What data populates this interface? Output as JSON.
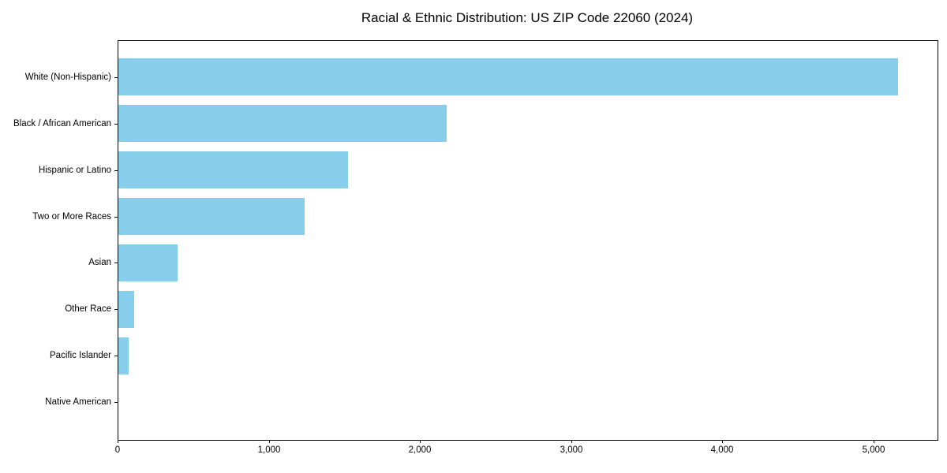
{
  "chart_data": {
    "type": "bar",
    "orientation": "horizontal",
    "title": "Racial & Ethnic Distribution: US ZIP Code 22060 (2024)",
    "categories": [
      "White (Non-Hispanic)",
      "Black / African American",
      "Hispanic or Latino",
      "Two or More Races",
      "Asian",
      "Other Race",
      "Pacific Islander",
      "Native American"
    ],
    "values": [
      5160,
      2170,
      1520,
      1230,
      390,
      105,
      70,
      0
    ],
    "bar_color": "#87CEEB",
    "background_color": "#FFFFFF",
    "axis_color": "#000000",
    "xlabel": "",
    "ylabel": "",
    "xlim": [
      0,
      5420
    ],
    "xticks": {
      "values": [
        0,
        1000,
        2000,
        3000,
        4000,
        5000
      ],
      "labels": [
        "0",
        "1,000",
        "2,000",
        "3,000",
        "4,000",
        "5,000"
      ]
    },
    "grid": false,
    "legend_position": "none"
  }
}
